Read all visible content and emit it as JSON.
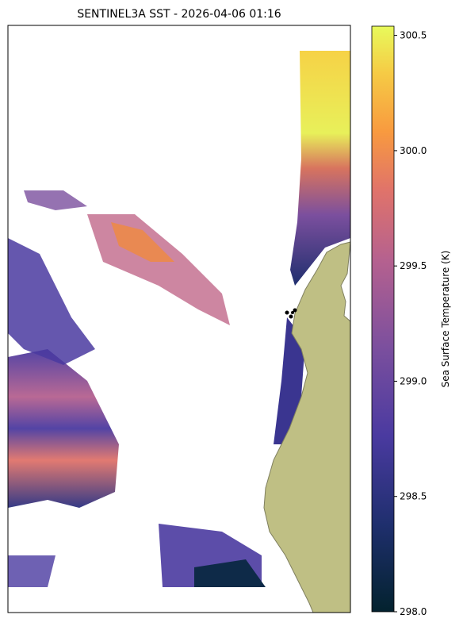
{
  "map": {
    "title": "SENTINEL3A SST - 2026-04-06 01:16",
    "colorbar": {
      "label": "Sea Surface Temperature (K)",
      "lim": [
        298.0,
        300.54
      ],
      "ticks": [
        {
          "value": 298.0,
          "label": "298.0"
        },
        {
          "value": 298.5,
          "label": "298.5"
        },
        {
          "value": 299.0,
          "label": "299.0"
        },
        {
          "value": 299.5,
          "label": "299.5"
        },
        {
          "value": 300.0,
          "label": "300.0"
        },
        {
          "value": 300.5,
          "label": "300.5"
        }
      ]
    }
  }
}
